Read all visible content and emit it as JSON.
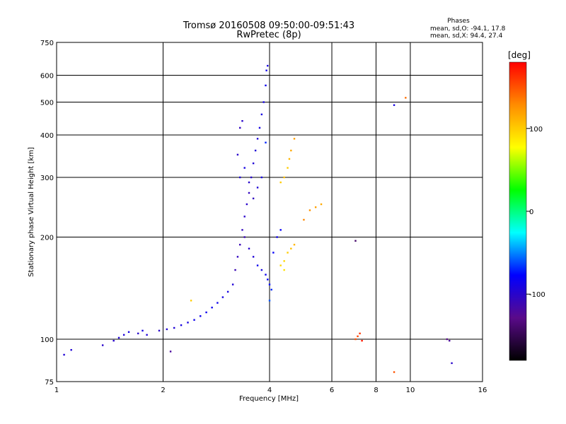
{
  "chart_data": {
    "type": "scatter",
    "title": "Tromsø 20160508 09:50:00-09:51:43",
    "subtitle": "RwPretec (8p)",
    "xlabel": "Frequency [MHz]",
    "ylabel": "Stationary phase Virtual Height [km]",
    "x_scale": "log2",
    "y_scale": "log",
    "xlim": [
      1,
      16
    ],
    "ylim": [
      75,
      750
    ],
    "x_ticks": [
      1,
      2,
      4,
      6,
      8,
      10,
      16
    ],
    "y_ticks": [
      75,
      100,
      200,
      300,
      400,
      500,
      600,
      750
    ],
    "grid": true,
    "phase_stats": {
      "heading": "Phases",
      "line_o": "mean, sd,O: -94.1, 17.8",
      "line_x": "mean, sd,X:  94.4, 27.4"
    },
    "colorbar": {
      "label": "[deg]",
      "range": [
        -180,
        180
      ],
      "ticks": [
        -100,
        0,
        100
      ],
      "colors": [
        "#000000",
        "#5a0a8a",
        "#0000ff",
        "#00ffff",
        "#00ff00",
        "#ffff00",
        "#ff8c00",
        "#ff0000"
      ]
    },
    "series": [
      {
        "points": [
          [
            1.05,
            90,
            -95
          ],
          [
            1.1,
            93,
            -95
          ],
          [
            1.35,
            96,
            -100
          ],
          [
            1.45,
            99,
            -100
          ],
          [
            1.5,
            101,
            -95
          ],
          [
            1.55,
            103,
            -95
          ],
          [
            1.6,
            105,
            -90
          ],
          [
            1.7,
            104,
            -100
          ],
          [
            1.75,
            106,
            -90
          ],
          [
            1.8,
            103,
            -95
          ],
          [
            1.95,
            106,
            -100
          ],
          [
            2.05,
            107,
            -95
          ],
          [
            2.15,
            108,
            -95
          ],
          [
            2.25,
            110,
            -90
          ],
          [
            2.35,
            112,
            -90
          ],
          [
            2.45,
            114,
            -85
          ],
          [
            2.55,
            117,
            -85
          ],
          [
            2.65,
            120,
            -85
          ],
          [
            2.75,
            124,
            -85
          ],
          [
            2.85,
            128,
            -85
          ],
          [
            2.95,
            133,
            -90
          ],
          [
            3.05,
            138,
            -90
          ],
          [
            3.15,
            145,
            -95
          ],
          [
            2.4,
            130,
            100
          ],
          [
            2.1,
            92,
            -120
          ]
        ]
      },
      {
        "points": [
          [
            3.2,
            160,
            -110
          ],
          [
            3.25,
            175,
            -105
          ],
          [
            3.3,
            190,
            -110
          ],
          [
            3.35,
            210,
            -105
          ],
          [
            3.4,
            230,
            -100
          ],
          [
            3.45,
            250,
            -100
          ],
          [
            3.5,
            270,
            -105
          ],
          [
            3.55,
            300,
            -100
          ],
          [
            3.6,
            330,
            -95
          ],
          [
            3.65,
            360,
            -95
          ],
          [
            3.7,
            390,
            -95
          ],
          [
            3.75,
            420,
            -90
          ],
          [
            3.8,
            460,
            -90
          ],
          [
            3.85,
            500,
            -90
          ],
          [
            3.9,
            560,
            -85
          ],
          [
            3.92,
            620,
            -85
          ],
          [
            3.95,
            640,
            -90
          ],
          [
            3.3,
            300,
            -95
          ],
          [
            3.4,
            320,
            -90
          ],
          [
            3.5,
            290,
            -100
          ],
          [
            3.6,
            260,
            -105
          ],
          [
            3.7,
            280,
            -95
          ],
          [
            3.8,
            300,
            -90
          ],
          [
            3.4,
            200,
            -110
          ],
          [
            3.5,
            185,
            -100
          ],
          [
            3.6,
            175,
            -95
          ],
          [
            3.7,
            165,
            -85
          ],
          [
            3.8,
            160,
            -90
          ],
          [
            3.9,
            155,
            -85
          ],
          [
            3.95,
            150,
            -80
          ],
          [
            4.0,
            145,
            -75
          ],
          [
            4.05,
            140,
            -70
          ],
          [
            4.1,
            180,
            -80
          ],
          [
            4.2,
            200,
            -85
          ],
          [
            4.3,
            210,
            -80
          ],
          [
            3.25,
            350,
            -100
          ],
          [
            3.3,
            420,
            -105
          ],
          [
            3.35,
            440,
            -100
          ],
          [
            3.9,
            380,
            -70
          ],
          [
            4.0,
            130,
            -60
          ]
        ]
      },
      {
        "points": [
          [
            4.3,
            290,
            100
          ],
          [
            4.4,
            300,
            105
          ],
          [
            4.5,
            320,
            100
          ],
          [
            4.55,
            340,
            110
          ],
          [
            4.6,
            360,
            115
          ],
          [
            4.7,
            390,
            120
          ],
          [
            4.4,
            170,
            95
          ],
          [
            4.5,
            180,
            100
          ],
          [
            4.6,
            185,
            105
          ],
          [
            4.7,
            190,
            110
          ],
          [
            4.3,
            165,
            95
          ],
          [
            4.4,
            160,
            90
          ],
          [
            5.0,
            225,
            130
          ],
          [
            5.2,
            240,
            125
          ],
          [
            5.4,
            245,
            120
          ],
          [
            5.6,
            250,
            115
          ]
        ]
      },
      {
        "points": [
          [
            7.0,
            195,
            -140
          ],
          [
            7.0,
            100,
            150
          ],
          [
            7.1,
            102,
            155
          ],
          [
            7.2,
            104,
            160
          ],
          [
            7.3,
            99,
            170
          ],
          [
            9.0,
            80,
            150
          ],
          [
            9.0,
            490,
            -90
          ],
          [
            9.7,
            515,
            140
          ],
          [
            12.7,
            100,
            -130
          ],
          [
            12.9,
            99,
            -120
          ],
          [
            13.1,
            85,
            -100
          ]
        ]
      }
    ]
  }
}
